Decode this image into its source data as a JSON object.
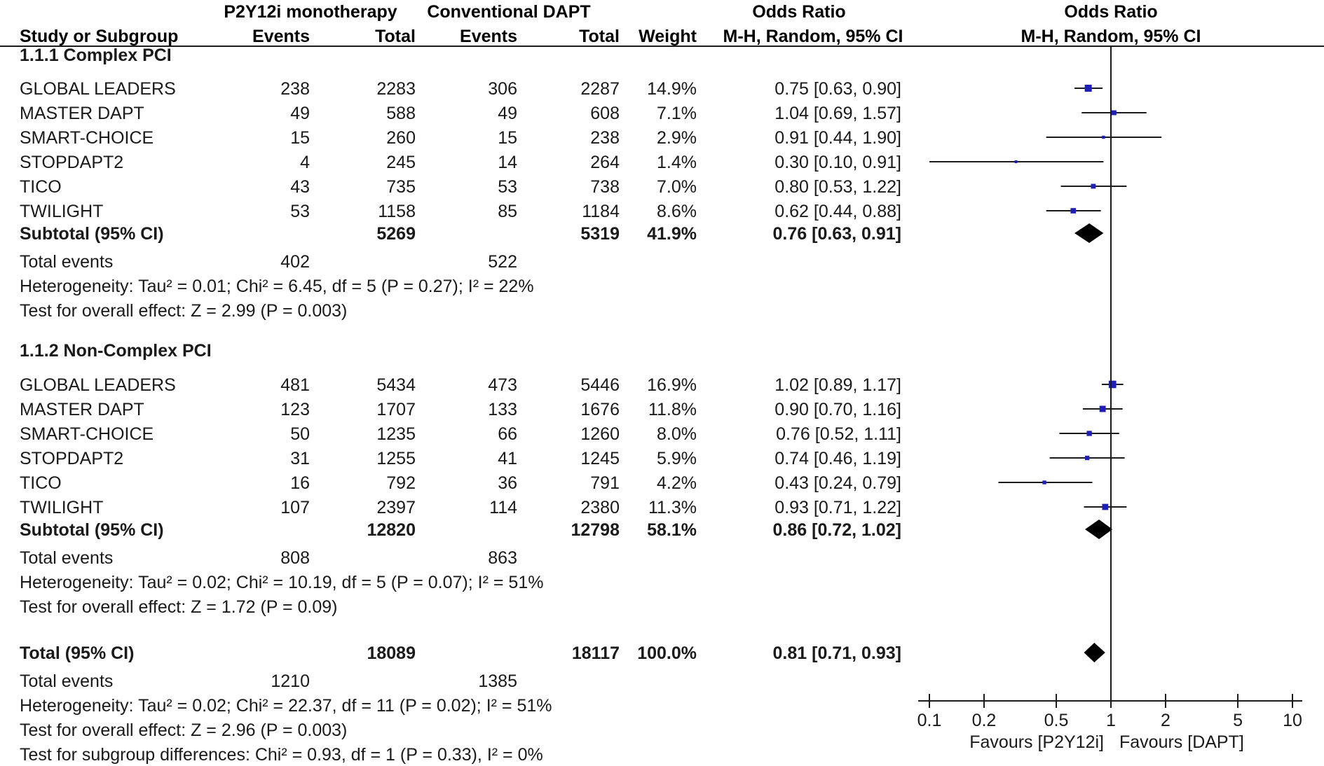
{
  "header": {
    "group1": "P2Y12i monotherapy",
    "group2": "Conventional DAPT",
    "or_table": "Odds Ratio",
    "or_plot": "Odds Ratio",
    "study": "Study or Subgroup",
    "events1": "Events",
    "total1": "Total",
    "events2": "Events",
    "total2": "Total",
    "weight": "Weight",
    "method_table": "M-H, Random, 95% CI",
    "method_plot": "M-H, Random, 95% CI"
  },
  "chart_data": {
    "type": "forest",
    "scale": "log",
    "xlim": [
      0.1,
      10
    ],
    "ticks": [
      "0.1",
      "0.2",
      "0.5",
      "1",
      "2",
      "5",
      "10"
    ],
    "favours_left": "Favours [P2Y12i]",
    "favours_right": "Favours [DAPT]",
    "subgroups": [
      {
        "title": "1.1.1 Complex PCI",
        "studies": [
          {
            "name": "GLOBAL LEADERS",
            "e1": "238",
            "t1": "2283",
            "e2": "306",
            "t2": "2287",
            "weight": "14.9%",
            "ci_text": "0.75 [0.63, 0.90]",
            "or": 0.75,
            "lo": 0.63,
            "hi": 0.9,
            "w": 14.9
          },
          {
            "name": "MASTER DAPT",
            "e1": "49",
            "t1": "588",
            "e2": "49",
            "t2": "608",
            "weight": "7.1%",
            "ci_text": "1.04 [0.69, 1.57]",
            "or": 1.04,
            "lo": 0.69,
            "hi": 1.57,
            "w": 7.1
          },
          {
            "name": "SMART-CHOICE",
            "e1": "15",
            "t1": "260",
            "e2": "15",
            "t2": "238",
            "weight": "2.9%",
            "ci_text": "0.91 [0.44, 1.90]",
            "or": 0.91,
            "lo": 0.44,
            "hi": 1.9,
            "w": 2.9
          },
          {
            "name": "STOPDAPT2",
            "e1": "4",
            "t1": "245",
            "e2": "14",
            "t2": "264",
            "weight": "1.4%",
            "ci_text": "0.30 [0.10, 0.91]",
            "or": 0.3,
            "lo": 0.1,
            "hi": 0.91,
            "w": 1.4
          },
          {
            "name": "TICO",
            "e1": "43",
            "t1": "735",
            "e2": "53",
            "t2": "738",
            "weight": "7.0%",
            "ci_text": "0.80 [0.53, 1.22]",
            "or": 0.8,
            "lo": 0.53,
            "hi": 1.22,
            "w": 7.0
          },
          {
            "name": "TWILIGHT",
            "e1": "53",
            "t1": "1158",
            "e2": "85",
            "t2": "1184",
            "weight": "8.6%",
            "ci_text": "0.62 [0.44, 0.88]",
            "or": 0.62,
            "lo": 0.44,
            "hi": 0.88,
            "w": 8.6
          }
        ],
        "subtotal": {
          "label": "Subtotal (95% CI)",
          "t1": "5269",
          "t2": "5319",
          "weight": "41.9%",
          "ci_text": "0.76 [0.63, 0.91]",
          "or": 0.76,
          "lo": 0.63,
          "hi": 0.91
        },
        "total_events": {
          "label": "Total events",
          "e1": "402",
          "e2": "522"
        },
        "heterogeneity": "Heterogeneity: Tau² = 0.01; Chi² = 6.45, df = 5 (P = 0.27); I² = 22%",
        "overall": "Test for overall effect: Z = 2.99 (P = 0.003)"
      },
      {
        "title": "1.1.2 Non-Complex PCI",
        "studies": [
          {
            "name": "GLOBAL LEADERS",
            "e1": "481",
            "t1": "5434",
            "e2": "473",
            "t2": "5446",
            "weight": "16.9%",
            "ci_text": "1.02 [0.89, 1.17]",
            "or": 1.02,
            "lo": 0.89,
            "hi": 1.17,
            "w": 16.9
          },
          {
            "name": "MASTER DAPT",
            "e1": "123",
            "t1": "1707",
            "e2": "133",
            "t2": "1676",
            "weight": "11.8%",
            "ci_text": "0.90 [0.70, 1.16]",
            "or": 0.9,
            "lo": 0.7,
            "hi": 1.16,
            "w": 11.8
          },
          {
            "name": "SMART-CHOICE",
            "e1": "50",
            "t1": "1235",
            "e2": "66",
            "t2": "1260",
            "weight": "8.0%",
            "ci_text": "0.76 [0.52, 1.11]",
            "or": 0.76,
            "lo": 0.52,
            "hi": 1.11,
            "w": 8.0
          },
          {
            "name": "STOPDAPT2",
            "e1": "31",
            "t1": "1255",
            "e2": "41",
            "t2": "1245",
            "weight": "5.9%",
            "ci_text": "0.74 [0.46, 1.19]",
            "or": 0.74,
            "lo": 0.46,
            "hi": 1.19,
            "w": 5.9
          },
          {
            "name": "TICO",
            "e1": "16",
            "t1": "792",
            "e2": "36",
            "t2": "791",
            "weight": "4.2%",
            "ci_text": "0.43 [0.24, 0.79]",
            "or": 0.43,
            "lo": 0.24,
            "hi": 0.79,
            "w": 4.2
          },
          {
            "name": "TWILIGHT",
            "e1": "107",
            "t1": "2397",
            "e2": "114",
            "t2": "2380",
            "weight": "11.3%",
            "ci_text": "0.93 [0.71, 1.22]",
            "or": 0.93,
            "lo": 0.71,
            "hi": 1.22,
            "w": 11.3
          }
        ],
        "subtotal": {
          "label": "Subtotal (95% CI)",
          "t1": "12820",
          "t2": "12798",
          "weight": "58.1%",
          "ci_text": "0.86 [0.72, 1.02]",
          "or": 0.86,
          "lo": 0.72,
          "hi": 1.02
        },
        "total_events": {
          "label": "Total events",
          "e1": "808",
          "e2": "863"
        },
        "heterogeneity": "Heterogeneity: Tau² = 0.02; Chi² = 10.19, df = 5 (P = 0.07); I² = 51%",
        "overall": "Test for overall effect: Z = 1.72 (P = 0.09)"
      }
    ],
    "total": {
      "label": "Total (95% CI)",
      "t1": "18089",
      "t2": "18117",
      "weight": "100.0%",
      "ci_text": "0.81 [0.71, 0.93]",
      "or": 0.81,
      "lo": 0.71,
      "hi": 0.93
    },
    "total_events": {
      "label": "Total events",
      "e1": "1210",
      "e2": "1385"
    },
    "heterogeneity": "Heterogeneity: Tau² = 0.02; Chi² = 22.37, df = 11 (P = 0.02); I² = 51%",
    "overall": "Test for overall effect: Z = 2.96 (P = 0.003)",
    "subgroup_diff": "Test for subgroup differences: Chi² = 0.93, df = 1 (P = 0.33), I² = 0%"
  }
}
